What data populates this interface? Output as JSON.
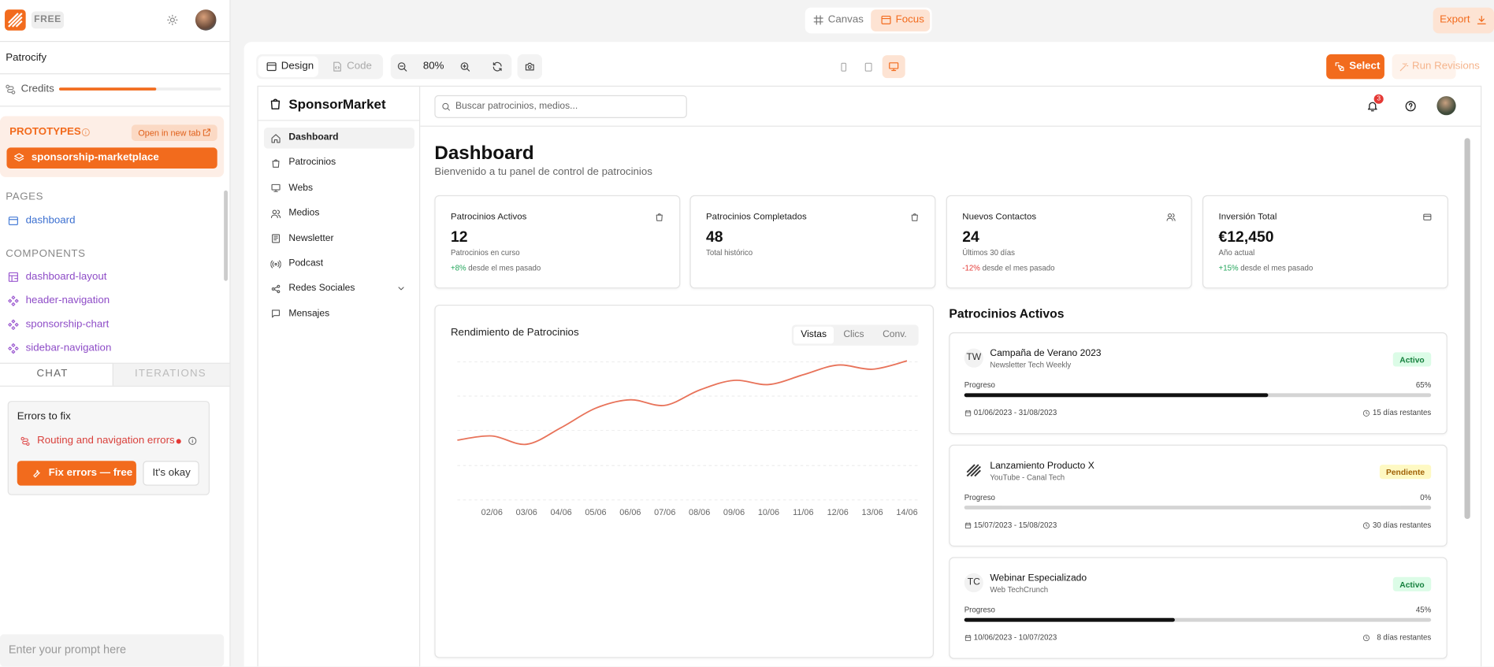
{
  "app": {
    "plan": "FREE",
    "project": "Patrocify",
    "credits_label": "Credits",
    "credits_used": 60,
    "prototypes_title": "PROTOTYPES",
    "open_new_tab": "Open in new tab",
    "prototype": "sponsorship-marketplace",
    "pages_title": "PAGES",
    "pages": [
      "dashboard"
    ],
    "components_title": "COMPONENTS",
    "components": [
      "dashboard-layout",
      "header-navigation",
      "sponsorship-chart",
      "sidebar-navigation"
    ],
    "tabs": [
      "CHAT",
      "ITERATIONS"
    ],
    "errors": {
      "title": "Errors to fix",
      "item": "Routing and navigation errors",
      "fix": "Fix errors — free",
      "dismiss": "It's okay"
    },
    "prompt_placeholder": "Enter your prompt here"
  },
  "toolbar": {
    "views": [
      "Canvas",
      "Focus"
    ],
    "export": "Export",
    "modes": [
      "Design",
      "Code"
    ],
    "zoom": "80%",
    "select": "Select",
    "run": "Run Revisions"
  },
  "preview": {
    "brand": "SponsorMarket",
    "search_placeholder": "Buscar patrocinios, medios...",
    "notifications": "3",
    "nav": [
      "Dashboard",
      "Patrocinios",
      "Webs",
      "Medios",
      "Newsletter",
      "Podcast",
      "Redes Sociales",
      "Mensajes"
    ],
    "title": "Dashboard",
    "subtitle": "Bienvenido a tu panel de control de patrocinios",
    "stats": [
      {
        "label": "Patrocinios Activos",
        "value": "12",
        "note": "Patrocinios en curso",
        "change": "+8%",
        "change_text": "desde el mes pasado"
      },
      {
        "label": "Patrocinios Completados",
        "value": "48",
        "note": "Total histórico"
      },
      {
        "label": "Nuevos Contactos",
        "value": "24",
        "note": "Últimos 30 días",
        "change": "-12%",
        "change_text": "desde el mes pasado"
      },
      {
        "label": "Inversión Total",
        "value": "€12,450",
        "note": "Año actual",
        "change": "+15%",
        "change_text": "desde el mes pasado"
      }
    ],
    "active_title": "Patrocinios Activos",
    "progress_label": "Progreso",
    "campaigns": [
      {
        "initials": "TW",
        "name": "Campaña de Verano 2023",
        "channel": "Newsletter Tech Weekly",
        "status": "Activo",
        "progress": 65,
        "progress_text": "65%",
        "dates": "01/06/2023 - 31/08/2023",
        "remaining": "15 días restantes"
      },
      {
        "name": "Lanzamiento Producto X",
        "channel": "YouTube - Canal Tech",
        "status": "Pendiente",
        "progress": 0,
        "progress_text": "0%",
        "dates": "15/07/2023 - 15/08/2023",
        "remaining": "30 días restantes"
      },
      {
        "initials": "TC",
        "name": "Webinar Especializado",
        "channel": "Web TechCrunch",
        "status": "Activo",
        "progress": 45,
        "progress_text": "45%",
        "dates": "10/06/2023 - 10/07/2023",
        "remaining": "8 días restantes"
      }
    ]
  },
  "chart_data": {
    "type": "line",
    "title": "Rendimiento de Patrocinios",
    "tabs": [
      "Vistas",
      "Clics",
      "Conv."
    ],
    "categories": [
      null,
      "02/06",
      "03/06",
      "04/06",
      "05/06",
      "06/06",
      "07/06",
      "08/06",
      "09/06",
      "10/06",
      "11/06",
      "12/06",
      "13/06",
      "14/06"
    ],
    "values": [
      43,
      46,
      40,
      52,
      66,
      72,
      68,
      79,
      86,
      83,
      90,
      97,
      94,
      100
    ],
    "color": "#e8735a",
    "ylim": [
      0,
      100
    ],
    "grid": true
  }
}
